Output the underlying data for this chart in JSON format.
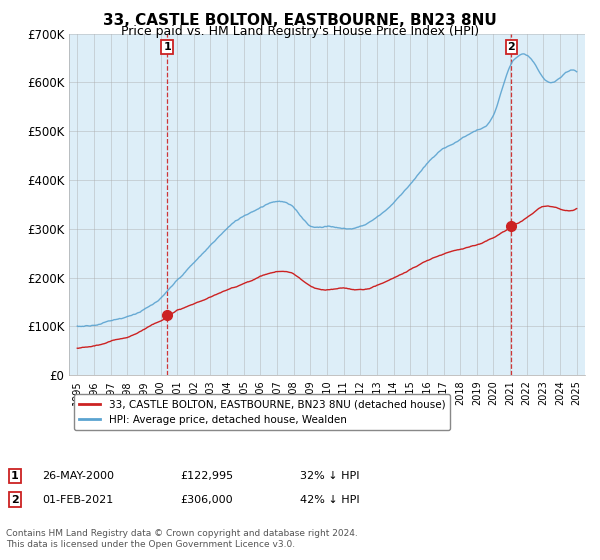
{
  "title1": "33, CASTLE BOLTON, EASTBOURNE, BN23 8NU",
  "title2": "Price paid vs. HM Land Registry's House Price Index (HPI)",
  "legend_label1": "33, CASTLE BOLTON, EASTBOURNE, BN23 8NU (detached house)",
  "legend_label2": "HPI: Average price, detached house, Wealden",
  "annotation1_num": "1",
  "annotation1_date": "26-MAY-2000",
  "annotation1_price": "£122,995",
  "annotation1_pct": "32% ↓ HPI",
  "annotation2_num": "2",
  "annotation2_date": "01-FEB-2021",
  "annotation2_price": "£306,000",
  "annotation2_pct": "42% ↓ HPI",
  "footer": "Contains HM Land Registry data © Crown copyright and database right 2024.\nThis data is licensed under the Open Government Licence v3.0.",
  "hpi_color": "#5ba3d0",
  "price_color": "#cc2222",
  "marker_color": "#cc2222",
  "point1_year": 2000.4,
  "point1_value": 122995,
  "point2_year": 2021.08,
  "point2_value": 306000,
  "ylim": [
    0,
    700000
  ],
  "yticks": [
    0,
    100000,
    200000,
    300000,
    400000,
    500000,
    600000,
    700000
  ],
  "ylabels": [
    "£0",
    "£100K",
    "£200K",
    "£300K",
    "£400K",
    "£500K",
    "£600K",
    "£700K"
  ],
  "xlim_start": 1994.5,
  "xlim_end": 2025.5,
  "background_color": "#ddeef8",
  "grid_color": "#aaaaaa",
  "title1_fontsize": 11,
  "title2_fontsize": 9
}
